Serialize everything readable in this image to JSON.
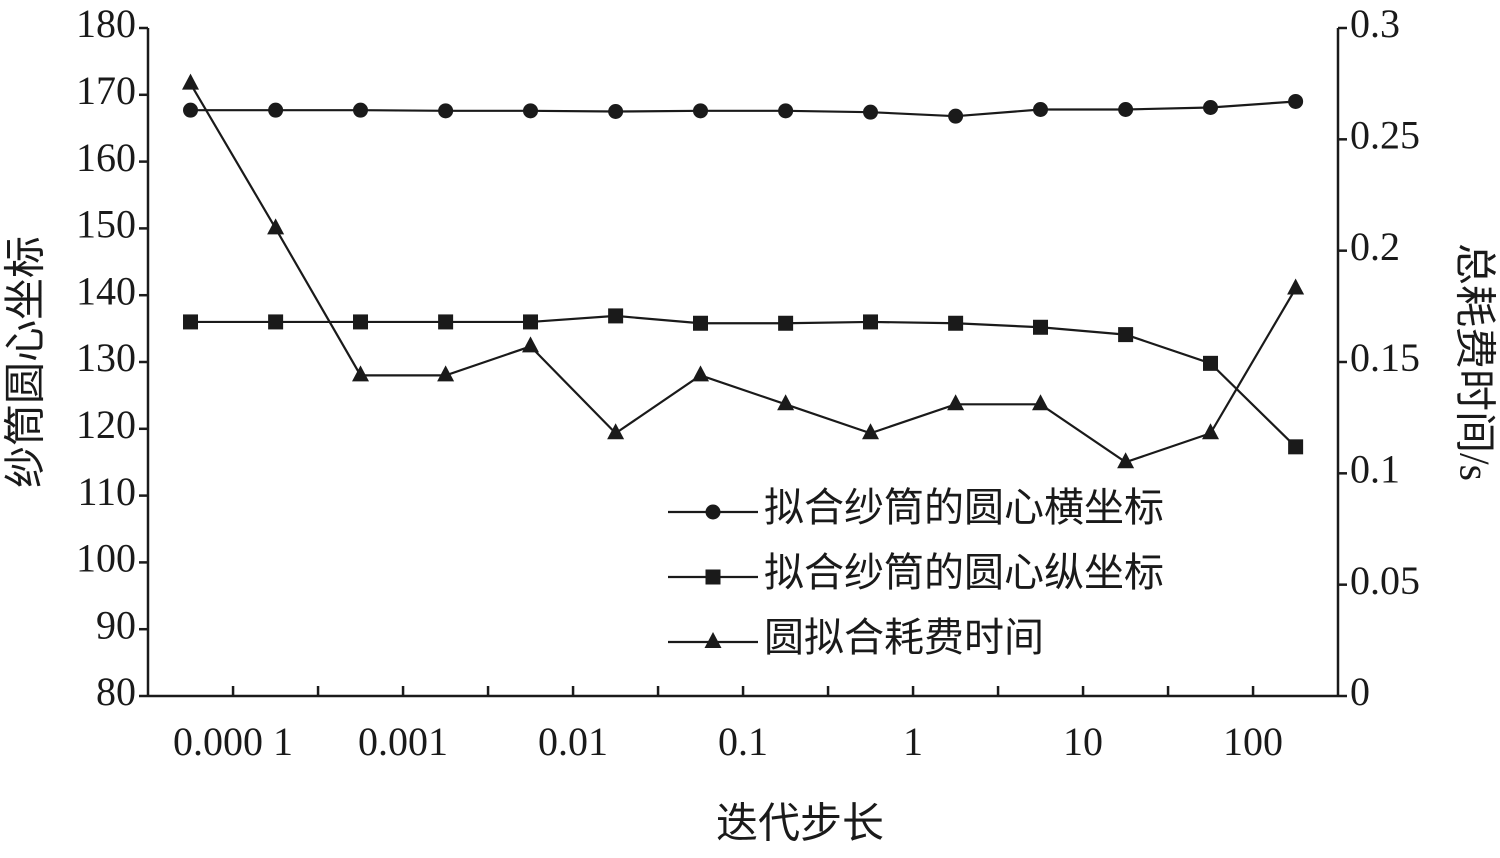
{
  "chart_data": {
    "type": "line",
    "x_label": "迭代步长",
    "y_label": "纱筒圆心坐标",
    "y2_label": "总耗费时间/s",
    "x": [
      5.62e-05,
      0.000178,
      0.000562,
      0.00178,
      0.00562,
      0.0178,
      0.0562,
      0.178,
      0.562,
      1.78,
      5.62,
      17.8,
      56.2,
      178
    ],
    "xscale": "log",
    "xlim": [
      3.16e-05,
      316
    ],
    "xticks": [
      {
        "value": 0.0001,
        "label": "0.000 1"
      },
      0.001,
      0.01,
      0.1,
      1,
      10,
      100
    ],
    "ylim": [
      80,
      180
    ],
    "yticks": [
      80,
      90,
      100,
      110,
      120,
      130,
      140,
      150,
      160,
      170,
      180
    ],
    "y2lim": [
      0,
      0.3
    ],
    "y2ticks": [
      0,
      0.05,
      0.1,
      0.15,
      0.2,
      0.25,
      0.3
    ],
    "grid": false,
    "legend": "lower right",
    "series": [
      {
        "name": "拟合纱筒的圆心横坐标",
        "color": "#1a1a1a",
        "marker": "circle",
        "values": [
          167.7,
          167.7,
          167.7,
          167.6,
          167.6,
          167.5,
          167.6,
          167.6,
          167.4,
          166.8,
          167.8,
          167.8,
          168.1,
          169.0
        ]
      },
      {
        "name": "拟合纱筒的圆心纵坐标",
        "color": "#1a1a1a",
        "marker": "square",
        "values": [
          136.0,
          136.0,
          136.0,
          136.0,
          136.0,
          136.9,
          135.8,
          135.8,
          136.0,
          135.8,
          135.2,
          134.1,
          129.8,
          117.3
        ]
      },
      {
        "name": "圆拟合耗费时间",
        "color": "#1a1a1a",
        "marker": "triangle",
        "axis": "y2",
        "values": [
          0.275,
          0.21,
          0.144,
          0.144,
          0.157,
          0.118,
          0.144,
          0.131,
          0.118,
          0.131,
          0.131,
          0.105,
          0.118,
          0.183
        ]
      }
    ]
  }
}
